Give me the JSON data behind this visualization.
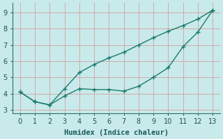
{
  "line1_x": [
    0,
    1,
    2,
    3,
    4,
    5,
    6,
    7,
    8,
    9,
    10,
    11,
    12,
    13
  ],
  "line1_y": [
    4.1,
    3.5,
    3.3,
    4.3,
    5.3,
    5.8,
    6.2,
    6.55,
    7.0,
    7.45,
    7.85,
    8.2,
    8.6,
    9.15
  ],
  "line2_x": [
    0,
    1,
    2,
    3,
    4,
    5,
    6,
    7,
    8,
    9,
    10,
    11,
    12,
    13
  ],
  "line2_y": [
    4.1,
    3.5,
    3.3,
    3.85,
    4.3,
    4.25,
    4.25,
    4.15,
    4.45,
    5.0,
    5.6,
    6.9,
    7.8,
    9.15
  ],
  "color": "#1a7a6e",
  "bg_color": "#c8eaea",
  "grid_major_color": "#b0cccc",
  "grid_minor_color": "#d8ecec",
  "xlabel": "Humidex (Indice chaleur)",
  "xlim": [
    -0.5,
    13.5
  ],
  "ylim": [
    2.8,
    9.6
  ],
  "yticks": [
    3,
    4,
    5,
    6,
    7,
    8,
    9
  ],
  "xticks": [
    0,
    1,
    2,
    3,
    4,
    5,
    6,
    7,
    8,
    9,
    10,
    11,
    12,
    13
  ],
  "xlabel_fontsize": 7.5,
  "tick_fontsize": 7,
  "linewidth": 1.0,
  "markersize": 3.0
}
